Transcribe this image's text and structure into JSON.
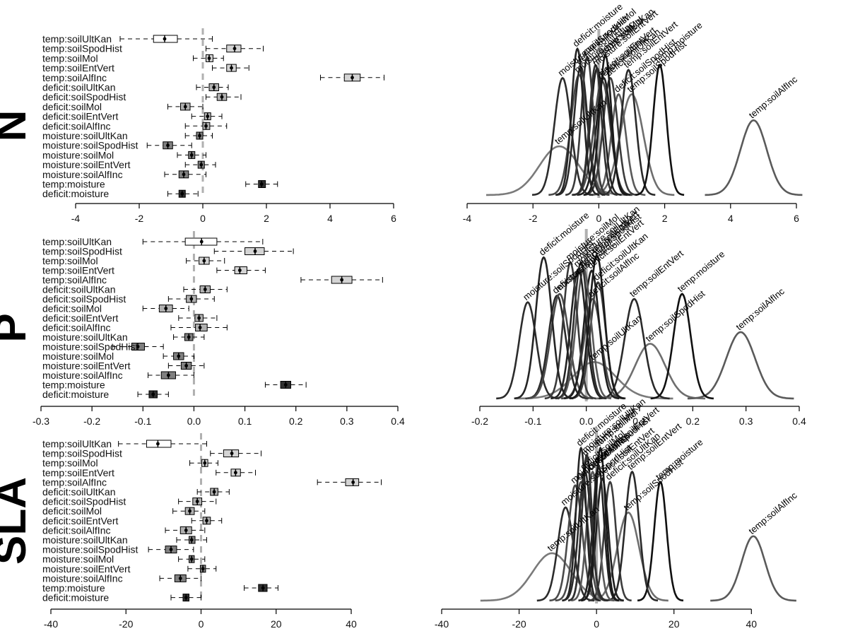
{
  "chart_data": [
    {
      "type": "boxplot",
      "panel": "N",
      "title": "N",
      "categories": [
        "temp:soilUltKan",
        "temp:soilSpodHist",
        "temp:soilMol",
        "temp:soilEntVert",
        "temp:soilAlfInc",
        "deficit:soilUltKan",
        "deficit:soilSpodHist",
        "deficit:soilMol",
        "deficit:soilEntVert",
        "deficit:soilAlfInc",
        "moisture:soilUltKan",
        "moisture:soilSpodHist",
        "moisture:soilMol",
        "moisture:soilEntVert",
        "moisture:soilAlfInc",
        "temp:moisture",
        "deficit:moisture"
      ],
      "median": [
        -1.2,
        1.0,
        0.2,
        0.9,
        4.7,
        0.35,
        0.6,
        -0.55,
        0.15,
        0.1,
        -0.1,
        -1.1,
        -0.35,
        -0.05,
        -0.6,
        1.85,
        -0.65
      ],
      "q1": [
        -1.55,
        0.75,
        0.1,
        0.75,
        4.45,
        0.2,
        0.45,
        -0.7,
        0.05,
        0.0,
        -0.2,
        -1.25,
        -0.45,
        -0.15,
        -0.75,
        1.75,
        -0.75
      ],
      "q3": [
        -0.8,
        1.2,
        0.32,
        1.05,
        4.95,
        0.5,
        0.75,
        -0.4,
        0.25,
        0.22,
        0.0,
        -0.95,
        -0.25,
        0.05,
        -0.45,
        1.97,
        -0.55
      ],
      "whisker_low": [
        -2.6,
        0.1,
        -0.3,
        0.3,
        3.7,
        -0.2,
        0.1,
        -1.1,
        -0.35,
        -0.55,
        -0.55,
        -1.75,
        -0.8,
        -0.55,
        -1.2,
        1.35,
        -1.1
      ],
      "whisker_high": [
        0.3,
        1.9,
        0.65,
        1.45,
        5.7,
        0.8,
        1.2,
        0.0,
        0.6,
        0.75,
        0.3,
        -0.35,
        0.1,
        0.4,
        0.1,
        2.35,
        -0.15
      ],
      "fills": [
        "#ffffff",
        "#d4d4d4",
        "#d4d4d4",
        "#d4d4d4",
        "#d4d4d4",
        "#b0b0b0",
        "#b0b0b0",
        "#b0b0b0",
        "#b0b0b0",
        "#b0b0b0",
        "#808080",
        "#808080",
        "#808080",
        "#808080",
        "#808080",
        "#303030",
        "#303030"
      ],
      "xlim": [
        -4,
        6
      ],
      "xticks": [
        "-4",
        "-2",
        "0",
        "2",
        "4",
        "6"
      ],
      "tick_values": [
        -4,
        -2,
        0,
        2,
        4,
        6
      ],
      "zero_line": 0
    },
    {
      "type": "density",
      "panel": "N",
      "labels": [
        "temp:soilUltKan",
        "temp:soilSpodHist",
        "temp:soilMol",
        "temp:soilEntVert",
        "temp:soilAlfInc",
        "deficit:soilUltKan",
        "deficit:soilSpodHist",
        "deficit:soilMol",
        "deficit:soilEntVert",
        "deficit:soilAlfInc",
        "moisture:soilUltKan",
        "moisture:soilSpodHist",
        "moisture:soilMol",
        "moisture:soilEntVert",
        "moisture:soilAlfInc",
        "temp:moisture",
        "deficit:moisture"
      ],
      "means": [
        -1.2,
        1.0,
        0.2,
        0.9,
        4.7,
        0.35,
        0.6,
        -0.55,
        0.15,
        0.1,
        -0.1,
        -1.1,
        -0.35,
        -0.05,
        -0.6,
        1.85,
        -0.65
      ],
      "sds": [
        0.6,
        0.35,
        0.18,
        0.22,
        0.4,
        0.22,
        0.22,
        0.2,
        0.22,
        0.25,
        0.18,
        0.25,
        0.18,
        0.2,
        0.25,
        0.2,
        0.18
      ],
      "peaks": [
        0.3,
        0.62,
        0.86,
        0.77,
        0.46,
        0.72,
        0.62,
        0.79,
        0.72,
        0.7,
        0.8,
        0.72,
        0.85,
        0.78,
        0.74,
        0.8,
        0.9
      ],
      "colors": [
        "#7a7a7a",
        "#6e6e6e",
        "#1a1a1a",
        "#2a2a2a",
        "#5a5a5a",
        "#3c3c3c",
        "#5a5a5a",
        "#2a2a2a",
        "#1e1e1e",
        "#4a4a4a",
        "#303030",
        "#2c2c2c",
        "#3a3a3a",
        "#222222",
        "#4a4a4a",
        "#101010",
        "#242424"
      ],
      "xlim": [
        -4,
        6
      ],
      "xticks": [
        "-4",
        "-2",
        "0",
        "2",
        "4",
        "6"
      ],
      "tick_values": [
        -4,
        -2,
        0,
        2,
        4,
        6
      ],
      "zero_line": 0
    },
    {
      "type": "boxplot",
      "panel": "P",
      "title": "P",
      "categories": [
        "temp:soilUltKan",
        "temp:soilSpodHist",
        "temp:soilMol",
        "temp:soilEntVert",
        "temp:soilAlfInc",
        "deficit:soilUltKan",
        "deficit:soilSpodHist",
        "deficit:soilMol",
        "deficit:soilEntVert",
        "deficit:soilAlfInc",
        "moisture:soilUltKan",
        "moisture:soilSpodHist",
        "moisture:soilMol",
        "moisture:soilEntVert",
        "moisture:soilAlfInc",
        "temp:moisture",
        "deficit:moisture"
      ],
      "median": [
        0.015,
        0.12,
        0.02,
        0.09,
        0.29,
        0.022,
        -0.005,
        -0.055,
        0.01,
        0.012,
        -0.01,
        -0.11,
        -0.03,
        -0.015,
        -0.05,
        0.18,
        -0.08
      ],
      "q1": [
        -0.017,
        0.1,
        0.01,
        0.08,
        0.27,
        0.012,
        -0.015,
        -0.068,
        0.002,
        0.003,
        -0.018,
        -0.122,
        -0.04,
        -0.025,
        -0.064,
        0.17,
        -0.088
      ],
      "q3": [
        0.045,
        0.138,
        0.03,
        0.104,
        0.31,
        0.032,
        0.005,
        -0.042,
        0.018,
        0.026,
        -0.002,
        -0.097,
        -0.02,
        -0.005,
        -0.036,
        0.19,
        -0.072
      ],
      "whisker_low": [
        -0.1,
        0.04,
        -0.015,
        0.045,
        0.21,
        -0.02,
        -0.05,
        -0.1,
        -0.03,
        -0.045,
        -0.04,
        -0.16,
        -0.06,
        -0.05,
        -0.09,
        0.14,
        -0.11
      ],
      "whisker_high": [
        0.135,
        0.195,
        0.06,
        0.14,
        0.37,
        0.065,
        0.04,
        -0.01,
        0.045,
        0.065,
        0.02,
        -0.06,
        0.0,
        0.02,
        0.0,
        0.22,
        -0.05
      ],
      "fills": [
        "#ffffff",
        "#d4d4d4",
        "#d4d4d4",
        "#d4d4d4",
        "#d4d4d4",
        "#b0b0b0",
        "#b0b0b0",
        "#b0b0b0",
        "#b0b0b0",
        "#b0b0b0",
        "#808080",
        "#808080",
        "#808080",
        "#808080",
        "#808080",
        "#303030",
        "#303030"
      ],
      "xlim": [
        -0.3,
        0.4
      ],
      "xticks": [
        "-0.3",
        "-0.2",
        "-0.1",
        "0.0",
        "0.1",
        "0.2",
        "0.3",
        "0.4"
      ],
      "tick_values": [
        -0.3,
        -0.2,
        -0.1,
        0.0,
        0.1,
        0.2,
        0.3,
        0.4
      ],
      "zero_line": 0
    },
    {
      "type": "density",
      "panel": "P",
      "labels": [
        "temp:soilUltKan",
        "temp:soilSpodHist",
        "temp:soilMol",
        "temp:soilEntVert",
        "temp:soilAlfInc",
        "deficit:soilUltKan",
        "deficit:soilSpodHist",
        "deficit:soilMol",
        "deficit:soilEntVert",
        "deficit:soilAlfInc",
        "moisture:soilUltKan",
        "moisture:soilSpodHist",
        "moisture:soilMol",
        "moisture:soilEntVert",
        "moisture:soilAlfInc",
        "temp:moisture",
        "deficit:moisture"
      ],
      "means": [
        0.015,
        0.12,
        0.02,
        0.09,
        0.29,
        0.022,
        -0.005,
        -0.055,
        0.01,
        0.012,
        -0.01,
        -0.11,
        -0.03,
        -0.015,
        -0.05,
        0.18,
        -0.08
      ],
      "sds": [
        0.04,
        0.028,
        0.014,
        0.018,
        0.027,
        0.014,
        0.014,
        0.016,
        0.014,
        0.016,
        0.013,
        0.016,
        0.013,
        0.014,
        0.017,
        0.016,
        0.015
      ],
      "peaks": [
        0.22,
        0.33,
        0.86,
        0.6,
        0.4,
        0.7,
        0.78,
        0.62,
        0.77,
        0.6,
        0.82,
        0.58,
        0.82,
        0.78,
        0.63,
        0.63,
        0.85
      ],
      "colors": [
        "#7a7a7a",
        "#6e6e6e",
        "#1a1a1a",
        "#2a2a2a",
        "#5a5a5a",
        "#3c3c3c",
        "#5a5a5a",
        "#2a2a2a",
        "#1e1e1e",
        "#4a4a4a",
        "#303030",
        "#2c2c2c",
        "#3a3a3a",
        "#222222",
        "#4a4a4a",
        "#101010",
        "#242424"
      ],
      "xlim": [
        -0.2,
        0.4
      ],
      "xticks": [
        "-0.2",
        "-0.1",
        "0.0",
        "0.1",
        "0.2",
        "0.3",
        "0.4"
      ],
      "tick_values": [
        -0.2,
        -0.1,
        0.0,
        0.1,
        0.2,
        0.3,
        0.4
      ],
      "zero_line": 0
    },
    {
      "type": "boxplot",
      "panel": "SLA",
      "title": "SLA",
      "categories": [
        "temp:soilUltKan",
        "temp:soilSpodHist",
        "temp:soilMol",
        "temp:soilEntVert",
        "temp:soilAlfInc",
        "deficit:soilUltKan",
        "deficit:soilSpodHist",
        "deficit:soilMol",
        "deficit:soilEntVert",
        "deficit:soilAlfInc",
        "moisture:soilUltKan",
        "moisture:soilSpodHist",
        "moisture:soilMol",
        "moisture:soilEntVert",
        "moisture:soilAlfInc",
        "temp:moisture",
        "deficit:moisture"
      ],
      "median": [
        -11.5,
        8.2,
        1.0,
        9.2,
        40.5,
        3.5,
        -1.0,
        -3.0,
        1.5,
        -4.0,
        -2.5,
        -8.0,
        -2.5,
        0.5,
        -5.5,
        16.5,
        -4.0
      ],
      "q1": [
        -14.5,
        6.0,
        0.2,
        8.0,
        38.5,
        2.5,
        -2.2,
        -4.2,
        0.5,
        -5.5,
        -3.2,
        -9.5,
        -3.2,
        -0.2,
        -7.0,
        15.3,
        -4.8
      ],
      "q3": [
        -8.0,
        10.0,
        1.8,
        10.5,
        42.0,
        4.5,
        0.2,
        -1.8,
        2.5,
        -2.5,
        -1.6,
        -6.5,
        -1.8,
        1.2,
        -4.0,
        17.6,
        -3.2
      ],
      "whisker_low": [
        -22.0,
        2.5,
        -3.0,
        4.0,
        31.0,
        -1.0,
        -6.0,
        -7.5,
        -2.5,
        -9.5,
        -6.5,
        -14.0,
        -6.0,
        -3.5,
        -11.0,
        11.5,
        -8.0
      ],
      "whisker_high": [
        1.5,
        16.0,
        4.5,
        14.5,
        48.0,
        7.5,
        4.0,
        1.0,
        5.5,
        1.0,
        1.5,
        -2.0,
        1.0,
        4.0,
        0.0,
        20.5,
        0.0
      ],
      "fills": [
        "#ffffff",
        "#d4d4d4",
        "#d4d4d4",
        "#d4d4d4",
        "#d4d4d4",
        "#b0b0b0",
        "#b0b0b0",
        "#b0b0b0",
        "#b0b0b0",
        "#b0b0b0",
        "#808080",
        "#808080",
        "#808080",
        "#808080",
        "#808080",
        "#303030",
        "#303030"
      ],
      "xlim": [
        -40,
        40
      ],
      "xticks": [
        "-40",
        "-20",
        "0",
        "20",
        "40"
      ],
      "tick_values": [
        -40,
        -20,
        0,
        20,
        40
      ],
      "zero_line": 0
    },
    {
      "type": "density",
      "panel": "SLA",
      "labels": [
        "temp:soilUltKan",
        "temp:soilSpodHist",
        "temp:soilMol",
        "temp:soilEntVert",
        "temp:soilAlfInc",
        "deficit:soilUltKan",
        "deficit:soilSpodHist",
        "deficit:soilMol",
        "deficit:soilEntVert",
        "deficit:soilAlfInc",
        "moisture:soilUltKan",
        "moisture:soilSpodHist",
        "moisture:soilMol",
        "moisture:soilEntVert",
        "moisture:soilAlfInc",
        "temp:moisture",
        "deficit:moisture"
      ],
      "means": [
        -11.5,
        8.2,
        1.0,
        9.2,
        40.5,
        3.5,
        -1.0,
        -3.0,
        1.5,
        -4.0,
        -2.5,
        -8.0,
        -2.5,
        0.5,
        -5.5,
        16.5,
        -4.0
      ],
      "sds": [
        5.0,
        2.8,
        1.3,
        1.8,
        3.0,
        1.5,
        1.5,
        1.6,
        1.5,
        1.8,
        1.3,
        2.0,
        1.3,
        1.4,
        1.8,
        1.6,
        1.3
      ],
      "peaks": [
        0.28,
        0.52,
        0.9,
        0.76,
        0.38,
        0.7,
        0.76,
        0.76,
        0.72,
        0.7,
        0.86,
        0.55,
        0.84,
        0.8,
        0.68,
        0.7,
        0.9
      ],
      "colors": [
        "#7a7a7a",
        "#6e6e6e",
        "#1a1a1a",
        "#2a2a2a",
        "#5a5a5a",
        "#3c3c3c",
        "#5a5a5a",
        "#2a2a2a",
        "#1e1e1e",
        "#4a4a4a",
        "#303030",
        "#2c2c2c",
        "#3a3a3a",
        "#222222",
        "#4a4a4a",
        "#101010",
        "#242424"
      ],
      "xlim": [
        -40,
        54
      ],
      "xticks": [
        "-40",
        "-20",
        "0",
        "20",
        "40"
      ],
      "tick_values": [
        -40,
        -20,
        0,
        20,
        40
      ],
      "zero_line": 0
    }
  ]
}
